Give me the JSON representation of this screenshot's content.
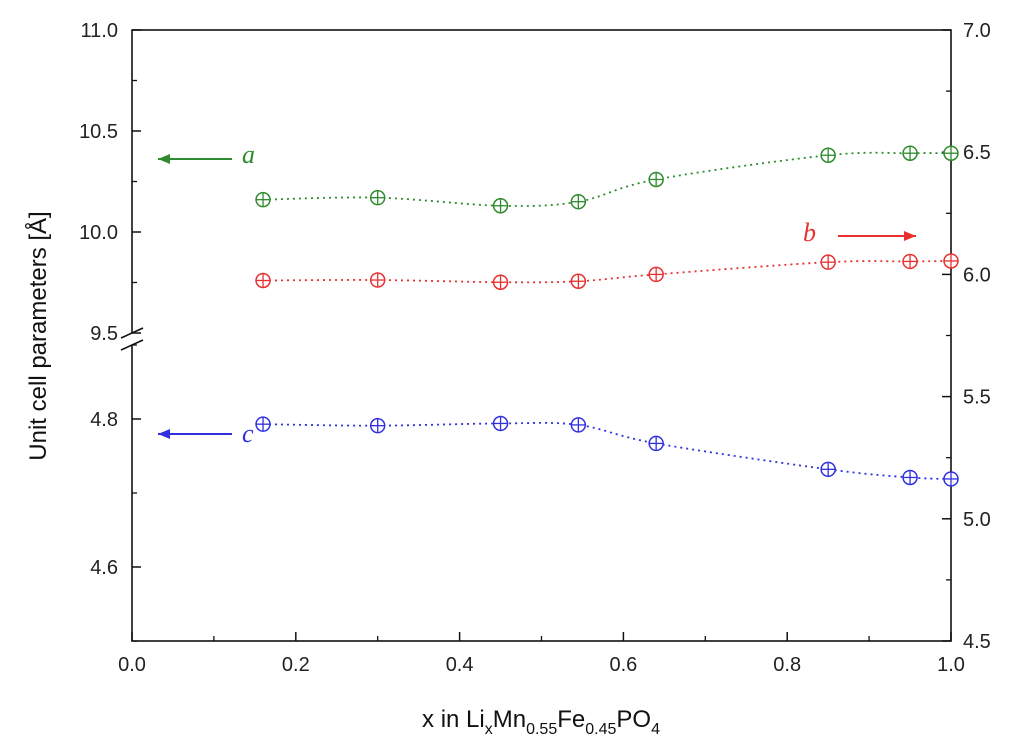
{
  "chart_data": {
    "type": "scatter",
    "title": "",
    "xlabel": {
      "main": "x in Li",
      "sub1": "x",
      "mid1": "Mn",
      "sub2": "0.55",
      "mid2": "Fe",
      "sub3": "0.45",
      "mid3": "PO",
      "sub4": "4"
    },
    "ylabel": "Unit cell parameters [Å]",
    "xlim": [
      0.0,
      1.0
    ],
    "left_axis": {
      "upper_range": [
        9.5,
        11.0
      ],
      "lower_range": [
        4.5,
        4.9
      ],
      "upper_ticks": [
        "9.5",
        "10.0",
        "10.5",
        "11.0"
      ],
      "lower_ticks": [
        "4.6",
        "4.8"
      ]
    },
    "right_axis": {
      "range": [
        4.5,
        7.0
      ],
      "ticks": [
        "4.5",
        "5.0",
        "5.5",
        "6.0",
        "6.5",
        "7.0"
      ]
    },
    "x_ticks": [
      "0.0",
      "0.2",
      "0.4",
      "0.6",
      "0.8",
      "1.0"
    ],
    "series": [
      {
        "name": "a",
        "axis": "left",
        "color": "#2e8b2e",
        "x": [
          0.16,
          0.3,
          0.45,
          0.545,
          0.64,
          0.85,
          0.95,
          1.0
        ],
        "values": [
          10.16,
          10.17,
          10.13,
          10.15,
          10.26,
          10.38,
          10.39,
          10.39
        ]
      },
      {
        "name": "b",
        "axis": "right",
        "color": "#e83030",
        "x": [
          0.16,
          0.3,
          0.45,
          0.545,
          0.64,
          0.85,
          0.95,
          1.0
        ],
        "values": [
          5.975,
          5.977,
          5.968,
          5.972,
          6.0,
          6.05,
          6.053,
          6.055
        ]
      },
      {
        "name": "c",
        "axis": "left",
        "color": "#3030e0",
        "x": [
          0.16,
          0.3,
          0.45,
          0.545,
          0.64,
          0.85,
          0.95,
          1.0
        ],
        "values": [
          4.793,
          4.791,
          4.794,
          4.792,
          4.767,
          4.732,
          4.721,
          4.719
        ]
      }
    ],
    "annotations": [
      {
        "label": "a",
        "arrow": "left",
        "color": "#2e8b2e"
      },
      {
        "label": "b",
        "arrow": "right",
        "color": "#e83030"
      },
      {
        "label": "c",
        "arrow": "left",
        "color": "#3030e0"
      }
    ]
  }
}
